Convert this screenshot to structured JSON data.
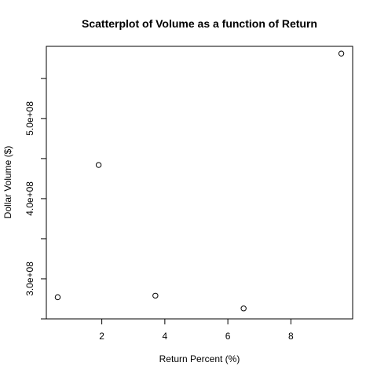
{
  "chart_data": {
    "type": "scatter",
    "title": "Scatterplot of Volume as a function of Return",
    "xlabel": "Return Percent (%)",
    "ylabel": "Dollar Volume ($)",
    "xlim": [
      0.24,
      9.96
    ],
    "ylim": [
      250000000,
      590000000
    ],
    "x_ticks": [
      2,
      4,
      6,
      8
    ],
    "x_tick_labels": [
      "2",
      "4",
      "6",
      "8"
    ],
    "y_ticks": [
      250000000,
      300000000,
      350000000,
      400000000,
      450000000,
      500000000,
      550000000
    ],
    "y_tick_labels": [
      "",
      "3.0e+08",
      "",
      "4.0e+08",
      "",
      "5.0e+08",
      ""
    ],
    "grid": false,
    "legend": "none",
    "points": [
      {
        "x": 0.6,
        "y": 277000000
      },
      {
        "x": 1.9,
        "y": 442000000
      },
      {
        "x": 3.7,
        "y": 279000000
      },
      {
        "x": 6.5,
        "y": 263000000
      },
      {
        "x": 9.6,
        "y": 581000000
      }
    ]
  }
}
